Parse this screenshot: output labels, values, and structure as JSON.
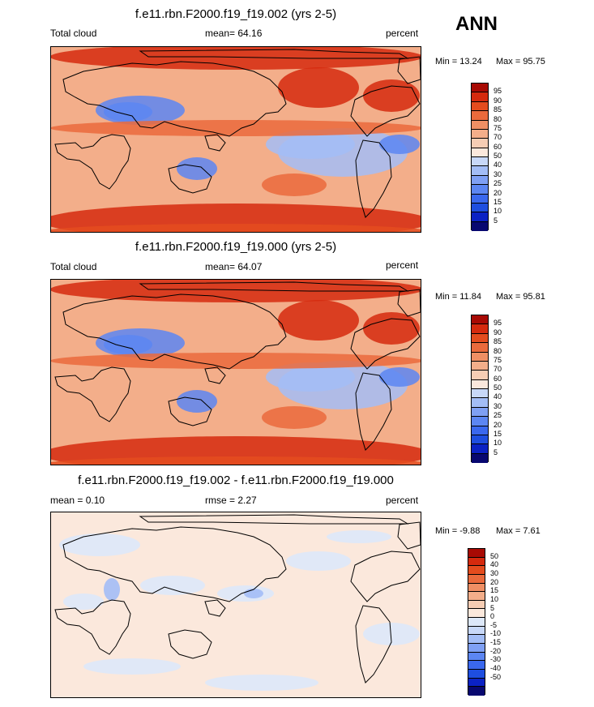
{
  "season": "ANN",
  "colors": {
    "abs_scale": [
      "#080870",
      "#0b22c4",
      "#1e4ee0",
      "#3a68ee",
      "#5c86f2",
      "#7fa0f4",
      "#a3bdf6",
      "#c8d8f8",
      "#fbe8dc",
      "#f6cdb4",
      "#f3ae8a",
      "#ef8f64",
      "#ea6a3c",
      "#e44c1e",
      "#d52a0e",
      "#a80a04"
    ],
    "diff_scale": [
      "#080870",
      "#0b22c4",
      "#1e4ee0",
      "#3a68ee",
      "#5c86f2",
      "#7fa0f4",
      "#a3bdf6",
      "#c8d8f8",
      "#dde8f9",
      "#fbe8dc",
      "#f6cdb4",
      "#f3ae8a",
      "#ef8f64",
      "#ea6a3c",
      "#e44c1e",
      "#d52a0e",
      "#a80a04"
    ]
  },
  "panels": [
    {
      "title": "f.e11.rbn.F2000.f19_f19.002 (yrs 2-5)",
      "left_label": "Total cloud",
      "center_label": "mean=  64.16",
      "units": "percent",
      "min_label": "Min =  13.24",
      "max_label": "Max =  95.75",
      "ticks": [
        "95",
        "90",
        "85",
        "80",
        "75",
        "70",
        "60",
        "50",
        "40",
        "30",
        "25",
        "20",
        "15",
        "10",
        "5"
      ],
      "scale": "abs"
    },
    {
      "title": "f.e11.rbn.F2000.f19_f19.000 (yrs 2-5)",
      "left_label": "Total cloud",
      "center_label": "mean=  64.07",
      "units": "percent",
      "min_label": "Min =  11.84",
      "max_label": "Max =  95.81",
      "ticks": [
        "95",
        "90",
        "85",
        "80",
        "75",
        "70",
        "60",
        "50",
        "40",
        "30",
        "25",
        "20",
        "15",
        "10",
        "5"
      ],
      "scale": "abs"
    },
    {
      "title": "f.e11.rbn.F2000.f19_f19.002 - f.e11.rbn.F2000.f19_f19.000",
      "left_label": "mean =   0.10",
      "center_label": "rmse =   2.27",
      "units": "percent",
      "min_label": "Min =  -9.88",
      "max_label": "Max =   7.61",
      "ticks": [
        "50",
        "40",
        "30",
        "20",
        "15",
        "10",
        "5",
        "0",
        "-5",
        "-10",
        "-15",
        "-20",
        "-30",
        "-40",
        "-50"
      ],
      "scale": "diff"
    }
  ]
}
